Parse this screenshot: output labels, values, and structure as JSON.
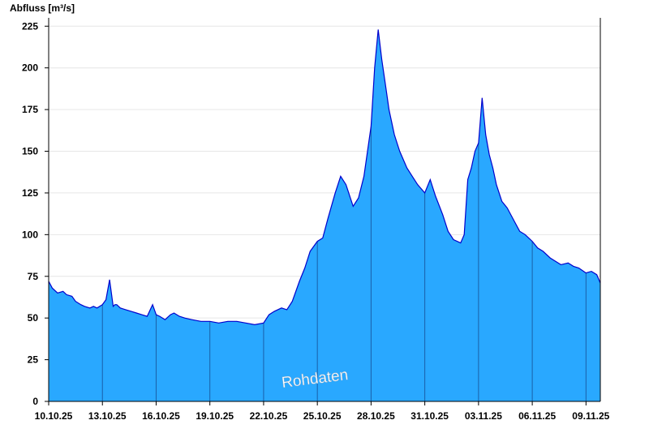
{
  "chart_data": {
    "type": "area",
    "title": "",
    "ylabel": "Abfluss [m³/s]",
    "xlabel": "",
    "watermark": "Rohdaten",
    "ylim": [
      0,
      230
    ],
    "yticks": [
      0,
      25,
      50,
      75,
      100,
      125,
      150,
      175,
      200,
      225
    ],
    "xlim_days": [
      0,
      30.8
    ],
    "xticks": [
      {
        "label": "10.10.25",
        "day": 0
      },
      {
        "label": "13.10.25",
        "day": 3
      },
      {
        "label": "16.10.25",
        "day": 6
      },
      {
        "label": "19.10.25",
        "day": 9
      },
      {
        "label": "22.10.25",
        "day": 12
      },
      {
        "label": "25.10.25",
        "day": 15
      },
      {
        "label": "28.10.25",
        "day": 18
      },
      {
        "label": "31.10.25",
        "day": 21
      },
      {
        "label": "03.11.25",
        "day": 24
      },
      {
        "label": "06.11.25",
        "day": 27
      },
      {
        "label": "09.11.25",
        "day": 30
      }
    ],
    "grid": true,
    "colors": {
      "fill": "#29a8ff",
      "line": "#0000cc",
      "grid": "#e6e6e6",
      "divider": "#1a5fa8"
    },
    "series": [
      {
        "x": [
          0,
          0.2,
          0.5,
          0.8,
          1.0,
          1.3,
          1.5,
          1.8,
          2.0,
          2.3,
          2.5,
          2.7,
          3.0,
          3.2,
          3.4,
          3.6,
          3.7,
          3.8,
          4.0,
          4.3,
          4.6,
          4.9,
          5.2,
          5.5,
          5.8,
          6.0,
          6.2,
          6.5,
          6.8,
          7.0,
          7.3,
          7.6,
          8.0,
          8.5,
          9.0,
          9.5,
          10.0,
          10.5,
          11.0,
          11.5,
          12.0,
          12.3,
          12.6,
          13.0,
          13.3,
          13.6,
          14.0,
          14.3,
          14.6,
          15.0,
          15.3,
          15.6,
          16.0,
          16.3,
          16.6,
          17.0,
          17.3,
          17.6,
          18.0,
          18.2,
          18.4,
          18.6,
          18.8,
          19.0,
          19.3,
          19.6,
          20.0,
          20.3,
          20.6,
          21.0,
          21.3,
          21.6,
          22.0,
          22.3,
          22.6,
          23.0,
          23.2,
          23.4,
          23.6,
          23.8,
          24.0,
          24.2,
          24.4,
          24.6,
          24.8,
          25.0,
          25.3,
          25.6,
          26.0,
          26.3,
          26.6,
          27.0,
          27.3,
          27.6,
          28.0,
          28.3,
          28.6,
          29.0,
          29.3,
          29.6,
          30.0,
          30.3,
          30.6,
          30.8
        ],
        "y": [
          72,
          68,
          65,
          66,
          64,
          63,
          60,
          58,
          57,
          56,
          57,
          56,
          58,
          61,
          73,
          57,
          58,
          58,
          56,
          55,
          54,
          53,
          52,
          51,
          58,
          52,
          51,
          49,
          52,
          53,
          51,
          50,
          49,
          48,
          48,
          47,
          48,
          48,
          47,
          46,
          47,
          52,
          54,
          56,
          55,
          60,
          72,
          80,
          90,
          96,
          98,
          110,
          125,
          135,
          130,
          117,
          122,
          135,
          165,
          200,
          223,
          205,
          190,
          175,
          160,
          150,
          140,
          135,
          130,
          125,
          133,
          123,
          112,
          102,
          97,
          95,
          100,
          133,
          140,
          150,
          155,
          182,
          160,
          148,
          140,
          130,
          120,
          116,
          108,
          102,
          100,
          96,
          92,
          90,
          86,
          84,
          82,
          83,
          81,
          80,
          77,
          78,
          76,
          71
        ]
      }
    ]
  }
}
